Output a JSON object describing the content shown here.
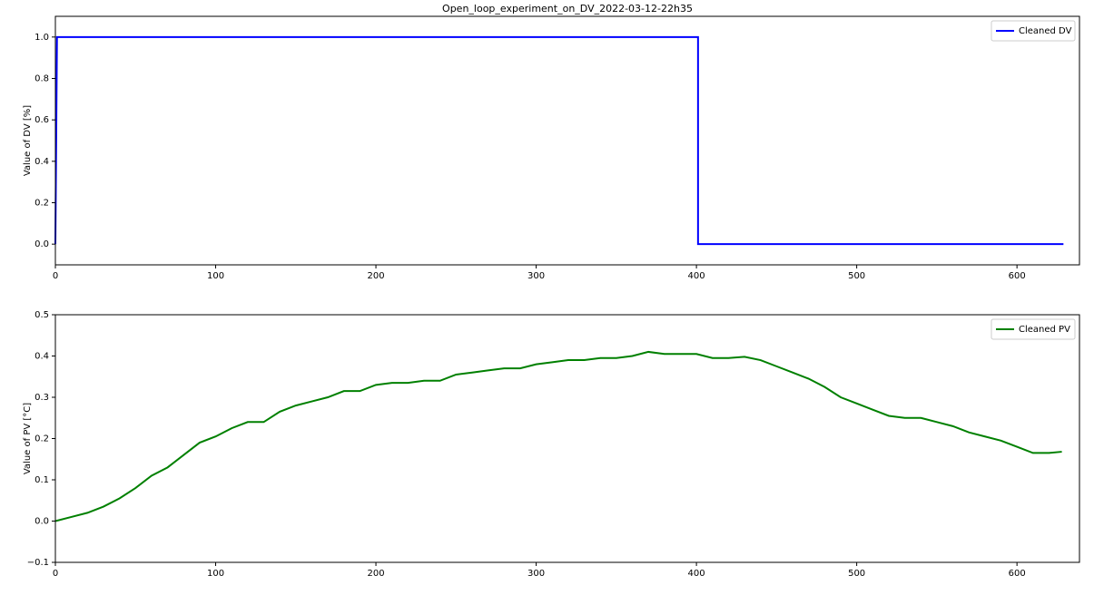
{
  "chart_data": [
    {
      "type": "line",
      "title": "Open_loop_experiment_on_DV_2022-03-12-22h35",
      "y_label": "Value of DV [%]",
      "x": [
        0,
        1,
        401,
        401,
        629
      ],
      "series": [
        {
          "name": "Cleaned DV",
          "color": "#0000ff",
          "values": [
            0,
            1,
            1,
            0,
            0
          ]
        }
      ],
      "xlim": [
        0,
        639
      ],
      "xticks": [
        0,
        100,
        200,
        300,
        400,
        500,
        600
      ],
      "ylim": [
        -0.1,
        1.1
      ],
      "yticks": [
        {
          "value": 0,
          "label": "0.0"
        },
        0.2,
        0.4,
        0.6,
        0.8,
        {
          "value": 1,
          "label": "1.0"
        }
      ],
      "legend": "upper right"
    },
    {
      "type": "line",
      "y_label": "Value of PV [°C]",
      "x": [
        0,
        10,
        20,
        30,
        40,
        50,
        60,
        70,
        80,
        90,
        100,
        110,
        120,
        130,
        140,
        150,
        160,
        170,
        180,
        190,
        200,
        210,
        220,
        230,
        240,
        250,
        260,
        270,
        280,
        290,
        300,
        310,
        320,
        330,
        340,
        350,
        360,
        370,
        380,
        390,
        400,
        410,
        420,
        430,
        440,
        450,
        460,
        470,
        480,
        490,
        500,
        510,
        520,
        530,
        540,
        550,
        560,
        570,
        580,
        590,
        600,
        610,
        620,
        628
      ],
      "series": [
        {
          "name": "Cleaned PV",
          "color": "#008000",
          "values": [
            0,
            0.01,
            0.02,
            0.035,
            0.055,
            0.08,
            0.11,
            0.13,
            0.16,
            0.19,
            0.205,
            0.225,
            0.24,
            0.24,
            0.265,
            0.28,
            0.29,
            0.3,
            0.315,
            0.315,
            0.33,
            0.335,
            0.335,
            0.34,
            0.34,
            0.355,
            0.36,
            0.365,
            0.37,
            0.37,
            0.38,
            0.385,
            0.39,
            0.39,
            0.395,
            0.395,
            0.4,
            0.41,
            0.405,
            0.405,
            0.405,
            0.395,
            0.395,
            0.398,
            0.39,
            0.375,
            0.36,
            0.345,
            0.325,
            0.3,
            0.285,
            0.27,
            0.255,
            0.25,
            0.25,
            0.24,
            0.23,
            0.215,
            0.205,
            0.195,
            0.18,
            0.165,
            0.165,
            0.168
          ]
        }
      ],
      "xlim": [
        0,
        639
      ],
      "xticks": [
        0,
        100,
        200,
        300,
        400,
        500,
        600
      ],
      "ylim": [
        -0.1,
        0.5
      ],
      "yticks": [
        {
          "value": -0.1,
          "label": "−0.1"
        },
        {
          "value": 0,
          "label": "0.0"
        },
        0.1,
        0.2,
        0.3,
        0.4,
        0.5
      ],
      "legend": "upper right"
    }
  ]
}
